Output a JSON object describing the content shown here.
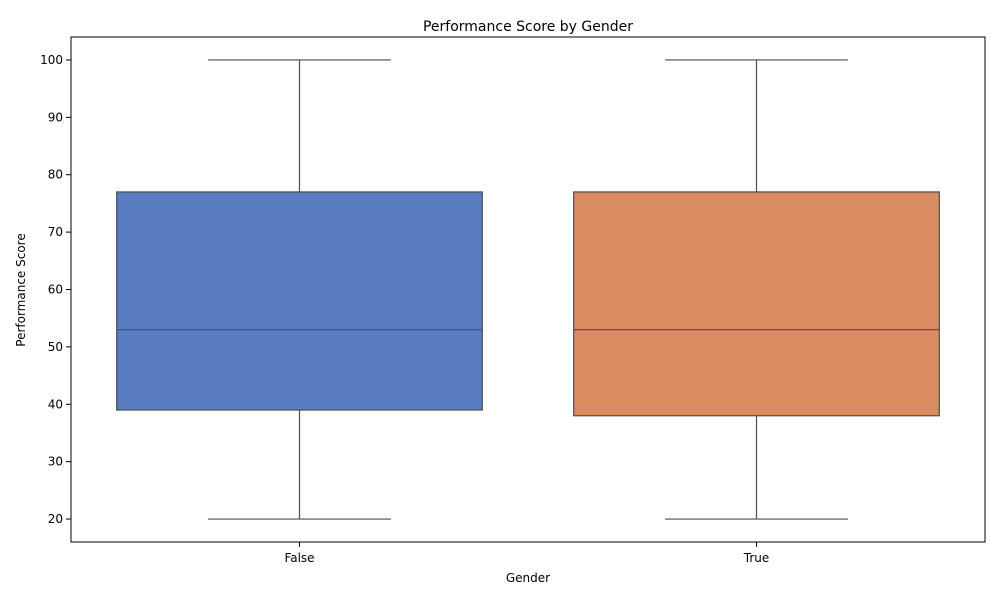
{
  "chart_data": {
    "type": "box",
    "title": "Performance Score by Gender",
    "xlabel": "Gender",
    "ylabel": "Performance Score",
    "ylim": [
      16,
      104
    ],
    "yticks": [
      20,
      30,
      40,
      50,
      60,
      70,
      80,
      90,
      100
    ],
    "grid": false,
    "categories": [
      "False",
      "True"
    ],
    "boxes": [
      {
        "category": "False",
        "min": 20,
        "q1": 39,
        "median": 53,
        "q3": 77,
        "max": 100,
        "color": "#5a7dc1"
      },
      {
        "category": "True",
        "min": 20,
        "q1": 38,
        "median": 53,
        "q3": 77,
        "max": 100,
        "color": "#d98b61"
      }
    ],
    "line_color": "#4d4d4d"
  }
}
